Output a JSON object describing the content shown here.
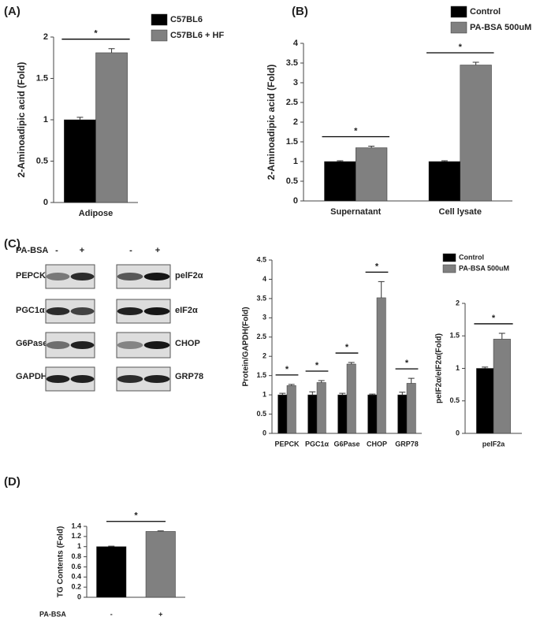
{
  "chart_data": [
    {
      "type": "bar",
      "panel": "(A)",
      "ylabel": "2-Aminoadipic acid (Fold)",
      "categories": [
        "Adipose"
      ],
      "series": [
        {
          "name": "C57BL6",
          "color": "#000000",
          "values": [
            1.0
          ],
          "errors": [
            0.03
          ]
        },
        {
          "name": "C57BL6 + HF",
          "color": "#808080",
          "values": [
            1.81
          ],
          "errors": [
            0.05
          ]
        }
      ],
      "annotations": [
        "*"
      ],
      "ylim": [
        0,
        2
      ],
      "yticks": [
        0,
        0.5,
        1,
        1.5,
        2
      ]
    },
    {
      "type": "bar",
      "panel": "(B)",
      "ylabel": "2-Aminoadipic acid (Fold)",
      "categories": [
        "Supernatant",
        "Cell lysate"
      ],
      "series": [
        {
          "name": "Control",
          "color": "#000000",
          "values": [
            1.0,
            1.0
          ],
          "errors": [
            0.02,
            0.02
          ]
        },
        {
          "name": "PA-BSA 500uM",
          "color": "#808080",
          "values": [
            1.35,
            3.45
          ],
          "errors": [
            0.04,
            0.07
          ]
        }
      ],
      "annotations": [
        "*",
        "*"
      ],
      "ylim": [
        0,
        4
      ],
      "yticks": [
        0,
        0.5,
        1,
        1.5,
        2,
        2.5,
        3,
        3.5,
        4
      ]
    },
    {
      "type": "bar",
      "panel": "(C)",
      "ylabel": "Protein/GAPDH(Fold)",
      "categories": [
        "PEPCK",
        "PGC1α",
        "G6Pase",
        "CHOP",
        "GRP78"
      ],
      "series": [
        {
          "name": "Control",
          "color": "#000000",
          "values": [
            1.0,
            1.0,
            1.0,
            1.0,
            1.0
          ],
          "errors": [
            0.04,
            0.08,
            0.04,
            0.02,
            0.07
          ]
        },
        {
          "name": "PA-BSA 500uM",
          "color": "#808080",
          "values": [
            1.24,
            1.32,
            1.8,
            3.52,
            1.3
          ],
          "errors": [
            0.03,
            0.05,
            0.04,
            0.42,
            0.13
          ]
        }
      ],
      "annotations": [
        "*",
        "*",
        "*",
        "*",
        "*"
      ],
      "ylim": [
        0,
        4.5
      ],
      "yticks": [
        0,
        0.5,
        1,
        1.5,
        2,
        2.5,
        3,
        3.5,
        4,
        4.5
      ]
    },
    {
      "type": "bar",
      "ylabel": "peIF2α/eIF2α(Fold)",
      "categories": [
        "peIF2a"
      ],
      "series": [
        {
          "color": "#000000",
          "values": [
            1.0
          ],
          "errors": [
            0.02
          ]
        },
        {
          "color": "#808080",
          "values": [
            1.45
          ],
          "errors": [
            0.09
          ]
        }
      ],
      "annotations": [
        "*"
      ],
      "ylim": [
        0,
        2
      ],
      "yticks": [
        0,
        0.5,
        1,
        1.5,
        2
      ]
    },
    {
      "type": "bar",
      "panel": "(D)",
      "ylabel": "TG Contents (Fold)",
      "xlabel": "PA-BSA",
      "categories": [
        "-",
        "+"
      ],
      "series": [
        {
          "colors": [
            "#000000",
            "#808080"
          ],
          "values": [
            1.0,
            1.3
          ],
          "errors": [
            0.01,
            0.01
          ]
        }
      ],
      "annotations": [
        "*"
      ],
      "ylim": [
        0,
        1.4
      ],
      "yticks": [
        0,
        0.2,
        0.4,
        0.6,
        0.8,
        1,
        1.2,
        1.4
      ]
    }
  ],
  "blot": {
    "treatment": "PA-BSA",
    "signs": [
      "-",
      "+",
      "-",
      "+"
    ],
    "left_labels": [
      "PEPCK",
      "PGC1α",
      "G6Pase",
      "GAPDH"
    ],
    "right_labels": [
      "pelF2α",
      "eIF2α",
      "CHOP",
      "GRP78"
    ]
  }
}
